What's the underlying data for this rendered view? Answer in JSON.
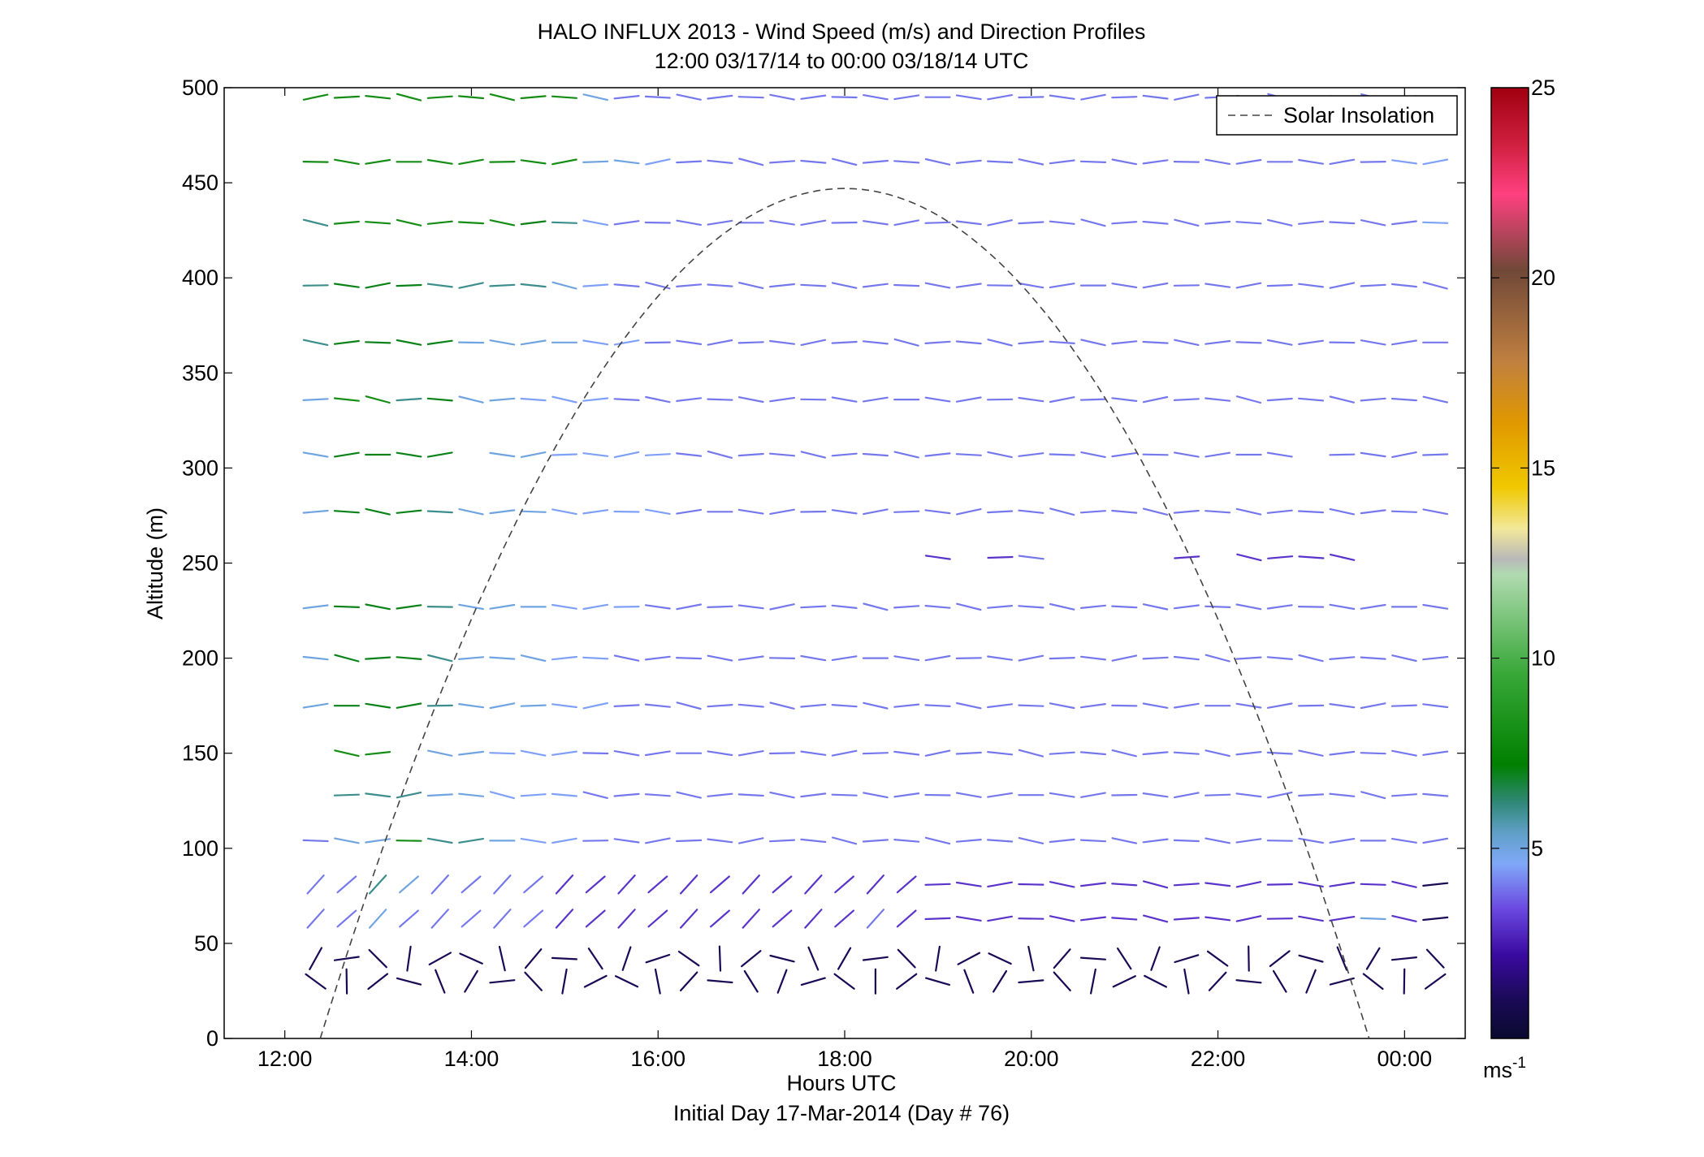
{
  "chart_data": {
    "type": "wind-barb-profile",
    "title": "HALO INFLUX 2013 - Wind Speed (m/s) and Direction Profiles",
    "subtitle": "12:00 03/17/14 to 00:00 03/18/14  UTC",
    "xlabel": "Hours UTC",
    "xlabel2": "Initial Day 17-Mar-2014 (Day # 76)",
    "ylabel": "Altitude (m)",
    "xlim": [
      11.35,
      24.65
    ],
    "ylim": [
      0,
      500
    ],
    "xticks": [
      {
        "v": 12,
        "label": "12:00"
      },
      {
        "v": 14,
        "label": "14:00"
      },
      {
        "v": 16,
        "label": "16:00"
      },
      {
        "v": 18,
        "label": "18:00"
      },
      {
        "v": 20,
        "label": "20:00"
      },
      {
        "v": 22,
        "label": "22:00"
      },
      {
        "v": 24,
        "label": "00:00"
      }
    ],
    "yticks": [
      {
        "v": 0,
        "label": "0"
      },
      {
        "v": 50,
        "label": "50"
      },
      {
        "v": 100,
        "label": "100"
      },
      {
        "v": 150,
        "label": "150"
      },
      {
        "v": 200,
        "label": "200"
      },
      {
        "v": 250,
        "label": "250"
      },
      {
        "v": 300,
        "label": "300"
      },
      {
        "v": 350,
        "label": "350"
      },
      {
        "v": 400,
        "label": "400"
      },
      {
        "v": 450,
        "label": "450"
      },
      {
        "v": 500,
        "label": "500"
      }
    ],
    "legend": {
      "label": "Solar Insolation",
      "position": "top-right"
    },
    "solar_insolation": {
      "start_hour": 12.38,
      "end_hour": 23.62,
      "peak_altitude": 447
    },
    "colorbar": {
      "min": 0,
      "max": 25,
      "ticks": [
        {
          "v": 5,
          "label": "5"
        },
        {
          "v": 10,
          "label": "10"
        },
        {
          "v": 15,
          "label": "15"
        },
        {
          "v": 20,
          "label": "20"
        },
        {
          "v": 25,
          "label": "25"
        }
      ],
      "unit": "ms",
      "unit_exponent": "-1",
      "stops": [
        {
          "v": 0,
          "color": "#0a0a30"
        },
        {
          "v": 1,
          "color": "#1a0a55"
        },
        {
          "v": 2.2,
          "color": "#3a0aa0"
        },
        {
          "v": 3.4,
          "color": "#6a48e0"
        },
        {
          "v": 4.6,
          "color": "#80a8f8"
        },
        {
          "v": 5.4,
          "color": "#60a0c8"
        },
        {
          "v": 6.2,
          "color": "#308878"
        },
        {
          "v": 7.2,
          "color": "#008000"
        },
        {
          "v": 9.6,
          "color": "#38a838"
        },
        {
          "v": 12.2,
          "color": "#b0dab0"
        },
        {
          "v": 12.6,
          "color": "#b8b8b8"
        },
        {
          "v": 13.4,
          "color": "#f2e89a"
        },
        {
          "v": 14.5,
          "color": "#f0c800"
        },
        {
          "v": 16.2,
          "color": "#e09800"
        },
        {
          "v": 17.8,
          "color": "#c08040"
        },
        {
          "v": 20.2,
          "color": "#704838"
        },
        {
          "v": 22.2,
          "color": "#ff4080"
        },
        {
          "v": 23.5,
          "color": "#d02040"
        },
        {
          "v": 25,
          "color": "#a00010"
        }
      ]
    },
    "rows": [
      {
        "alt": 495,
        "start": 12.33,
        "speeds": [
          8,
          8,
          8,
          8,
          8,
          8,
          8,
          8,
          8,
          5,
          4,
          4,
          4,
          4,
          4,
          4,
          4,
          4,
          4,
          4,
          4,
          4,
          4,
          4,
          4,
          4,
          4,
          4,
          4,
          4,
          4,
          4,
          4,
          4,
          4,
          4,
          4,
          4
        ],
        "missing": [
          38
        ]
      },
      {
        "alt": 461,
        "start": 12.33,
        "speeds": [
          8,
          8,
          8,
          8,
          8,
          8,
          8,
          8,
          8,
          5,
          5,
          4.5,
          4,
          4,
          4,
          4,
          4,
          4,
          4,
          4,
          4,
          4,
          4,
          4,
          4,
          4,
          4,
          4,
          4,
          4,
          4,
          4,
          4,
          4,
          4,
          4.5,
          4.5,
          4.5
        ]
      },
      {
        "alt": 429,
        "start": 12.33,
        "speeds": [
          6,
          8,
          8,
          8,
          8,
          8,
          8,
          7,
          6,
          4.5,
          4,
          4,
          4,
          4,
          4,
          4,
          4,
          4,
          4,
          4,
          4,
          4,
          4,
          4,
          4,
          4,
          4,
          4,
          4,
          4,
          4,
          4,
          4,
          4,
          4,
          4,
          4.5,
          4.5
        ]
      },
      {
        "alt": 396,
        "start": 12.33,
        "speeds": [
          6,
          7,
          7,
          7,
          6,
          6,
          6,
          6,
          5,
          4.5,
          4,
          4,
          4,
          4,
          4,
          4,
          4,
          4,
          4,
          4,
          4,
          4,
          4,
          4,
          4,
          4,
          4,
          4,
          4,
          4,
          4,
          4,
          4,
          4,
          4,
          4,
          4,
          4.5
        ]
      },
      {
        "alt": 366,
        "start": 12.33,
        "speeds": [
          6,
          7,
          7,
          7,
          7,
          5,
          5,
          5,
          5,
          4.5,
          4.5,
          4,
          4,
          4,
          4,
          4,
          4,
          4,
          4,
          4,
          4,
          4,
          4,
          4,
          4,
          4,
          4,
          4,
          4,
          4,
          4,
          4,
          4,
          4,
          4,
          4,
          4,
          4.5
        ]
      },
      {
        "alt": 336,
        "start": 12.33,
        "speeds": [
          5,
          8,
          8,
          6,
          7,
          5,
          5,
          4.5,
          4.5,
          4.5,
          4,
          4,
          4,
          4,
          4,
          4,
          4,
          4,
          4,
          4,
          4,
          4,
          4,
          4,
          4,
          4,
          4,
          4,
          4,
          4,
          4,
          4,
          4,
          4,
          4,
          4,
          4,
          4
        ]
      },
      {
        "alt": 307,
        "start": 12.33,
        "speeds": [
          5,
          7,
          7,
          7,
          7,
          null,
          5,
          5,
          4.5,
          4.5,
          4.5,
          4.5,
          4,
          4,
          4,
          4,
          4,
          4,
          4,
          4,
          4,
          4,
          4,
          4,
          4,
          4,
          4,
          4,
          4,
          4,
          4,
          4,
          null,
          4,
          4,
          4,
          4,
          4
        ]
      },
      {
        "alt": 277,
        "start": 12.33,
        "speeds": [
          5,
          7,
          7,
          7,
          6,
          5,
          5,
          5,
          4.5,
          4.5,
          4.5,
          4.5,
          4,
          4,
          4,
          4,
          4,
          4,
          4,
          4,
          4,
          4,
          4,
          4,
          4,
          4,
          4,
          4,
          4,
          4,
          4,
          4,
          4,
          4,
          4,
          4,
          4,
          4
        ]
      },
      {
        "alt": 253,
        "start": 19.0,
        "speeds": [
          3,
          null,
          3,
          4,
          null,
          null,
          null,
          null,
          3,
          null,
          3,
          3,
          3,
          3
        ]
      },
      {
        "alt": 227,
        "start": 12.33,
        "speeds": [
          5,
          7,
          7,
          7,
          6,
          5,
          5,
          5,
          4.5,
          4.5,
          4.5,
          4,
          4,
          4,
          4,
          4,
          4,
          4,
          4,
          4,
          4,
          4,
          4,
          4,
          4,
          4,
          4,
          4,
          4,
          4,
          4,
          4,
          4,
          4,
          4,
          4,
          4,
          4
        ]
      },
      {
        "alt": 200,
        "start": 12.33,
        "speeds": [
          5,
          7,
          7,
          7,
          6,
          5,
          5,
          5,
          4.5,
          4.5,
          4,
          4,
          4,
          4,
          4,
          4,
          4,
          4,
          4,
          4,
          4,
          4,
          4,
          4,
          4,
          4,
          4,
          4,
          4,
          4,
          4,
          4,
          4,
          4,
          4,
          4,
          4,
          4
        ]
      },
      {
        "alt": 175,
        "start": 12.33,
        "speeds": [
          5,
          7,
          7,
          7,
          6,
          5,
          5,
          5,
          4.5,
          4.5,
          4,
          4,
          4,
          4,
          4,
          4,
          4,
          4,
          4,
          4,
          4,
          4,
          4,
          4,
          4,
          4,
          4,
          4,
          4,
          4,
          4,
          4,
          4,
          4,
          4,
          4,
          4,
          4
        ]
      },
      {
        "alt": 150,
        "start": 12.33,
        "speeds": [
          null,
          8,
          8,
          null,
          5,
          5,
          4.5,
          4.5,
          4.5,
          4,
          4,
          4,
          4,
          4,
          4,
          4,
          4,
          4,
          4,
          4,
          4,
          4,
          4,
          4,
          4,
          4,
          4,
          4,
          4,
          4,
          4,
          4,
          4,
          4,
          4,
          4,
          4,
          4
        ]
      },
      {
        "alt": 128,
        "start": 12.33,
        "speeds": [
          null,
          6,
          6,
          6,
          5,
          5,
          4.5,
          4.5,
          4.5,
          4,
          4,
          4,
          4,
          4,
          4,
          4,
          4,
          4,
          4,
          4,
          4,
          4,
          4,
          4,
          4,
          4,
          4,
          4,
          4,
          4,
          4,
          4,
          4,
          4,
          4,
          4,
          4,
          4
        ]
      },
      {
        "alt": 104,
        "start": 12.33,
        "speeds": [
          4,
          5,
          5,
          8,
          6,
          6,
          5,
          4.5,
          4.5,
          4,
          4,
          4,
          4,
          4,
          4,
          4,
          4,
          4,
          4,
          4,
          4,
          4,
          4,
          4,
          4,
          4,
          4,
          4,
          4,
          4,
          4,
          4,
          4,
          4,
          4,
          4,
          4,
          4
        ]
      },
      {
        "alt": 81,
        "start": 12.33,
        "speeds": [
          4,
          4,
          6,
          5,
          4,
          4,
          4,
          4,
          3,
          3,
          3,
          3,
          3,
          3,
          3,
          3,
          3,
          3,
          3,
          3,
          3,
          3,
          3,
          3,
          3,
          3,
          3,
          3,
          3,
          3,
          3,
          3,
          3,
          3,
          3,
          3,
          1,
          1
        ]
      },
      {
        "alt": 63,
        "start": 12.33,
        "speeds": [
          4,
          4,
          5,
          4,
          4,
          4,
          4,
          4,
          3,
          3,
          3,
          3,
          3,
          3,
          3,
          3,
          3,
          3,
          4,
          3,
          3,
          3,
          3,
          3,
          3,
          3,
          3,
          3,
          3,
          3,
          3,
          3,
          3,
          3,
          5,
          3,
          1,
          1
        ]
      },
      {
        "alt": 42,
        "start": 12.33,
        "speeds": [
          1,
          1,
          1,
          1,
          1,
          1,
          1,
          1,
          1,
          1,
          1,
          1,
          1,
          1,
          1,
          1,
          1,
          1,
          1,
          1,
          1,
          1,
          1,
          1,
          1,
          1,
          1,
          1,
          1,
          1,
          1,
          1,
          1,
          1,
          1,
          1,
          1,
          1
        ]
      },
      {
        "alt": 30,
        "start": 12.33,
        "speeds": [
          1,
          1,
          1,
          1,
          1,
          1,
          1,
          1,
          1,
          1,
          1,
          1,
          1,
          1,
          1,
          1,
          1,
          1,
          1,
          1,
          1,
          1,
          1,
          1,
          1,
          1,
          1,
          1,
          1,
          1,
          1,
          1,
          1,
          1,
          1,
          1,
          1,
          1
        ]
      }
    ]
  }
}
